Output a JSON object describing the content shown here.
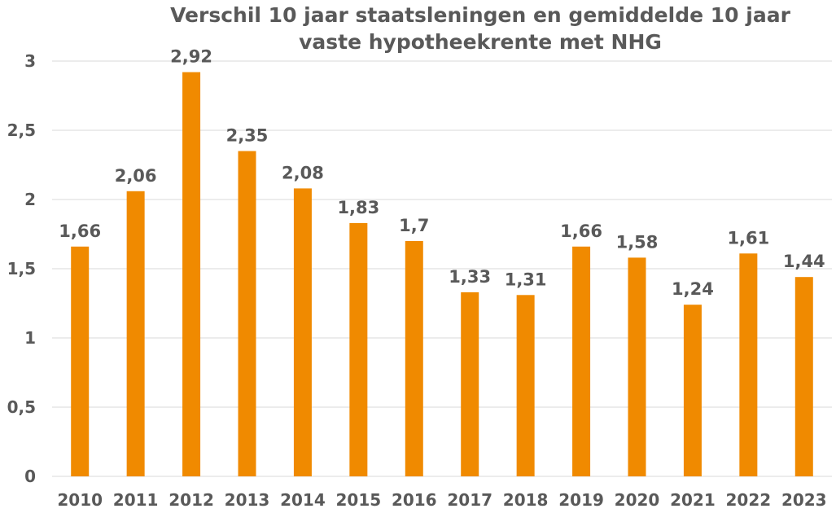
{
  "chart_data": {
    "type": "bar",
    "title_line1": "Verschil 10 jaar staatsleningen en gemiddelde 10 jaar",
    "title_line2": "vaste hypotheekrente met NHG",
    "categories": [
      "2010",
      "2011",
      "2012",
      "2013",
      "2014",
      "2015",
      "2016",
      "2017",
      "2018",
      "2019",
      "2020",
      "2021",
      "2022",
      "2023"
    ],
    "values": [
      1.66,
      2.06,
      2.92,
      2.35,
      2.08,
      1.83,
      1.7,
      1.33,
      1.31,
      1.66,
      1.58,
      1.24,
      1.61,
      1.44
    ],
    "data_labels": [
      "1,66",
      "2,06",
      "2,92",
      "2,35",
      "2,08",
      "1,83",
      "1,7",
      "1,33",
      "1,31",
      "1,66",
      "1,58",
      "1,24",
      "1,61",
      "1,44"
    ],
    "y_ticks": [
      0,
      0.5,
      1,
      1.5,
      2,
      2.5,
      3
    ],
    "y_tick_labels": [
      "0",
      "0,5",
      "1",
      "1,5",
      "2",
      "2,5",
      "3"
    ],
    "ylim": [
      0,
      3
    ],
    "grid": true,
    "legend": "none",
    "xlabel": "",
    "ylabel": "",
    "colors": {
      "bar": "#F08A00",
      "text": "#595959",
      "grid": "#D9D9D9"
    }
  }
}
